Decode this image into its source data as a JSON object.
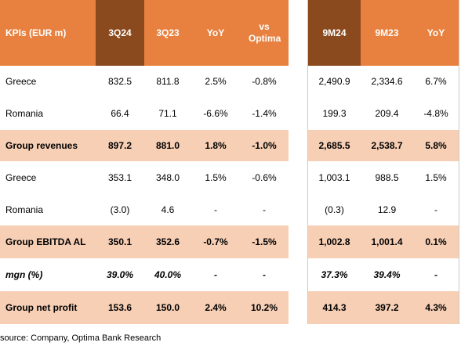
{
  "header": {
    "label": "KPIs (EUR m)",
    "columns": [
      "3Q24",
      "3Q23",
      "YoY",
      "vs Optima",
      "9M24",
      "9M23",
      "YoY"
    ]
  },
  "rows": [
    {
      "label": "Greece",
      "values": [
        "832.5",
        "811.8",
        "2.5%",
        "-0.8%",
        "2,490.9",
        "2,334.6",
        "6.7%"
      ]
    },
    {
      "label": "Romania",
      "values": [
        "66.4",
        "71.1",
        "-6.6%",
        "-1.4%",
        "199.3",
        "209.4",
        "-4.8%"
      ]
    },
    {
      "label": "Group revenues",
      "values": [
        "897.2",
        "881.0",
        "1.8%",
        "-1.0%",
        "2,685.5",
        "2,538.7",
        "5.8%"
      ]
    },
    {
      "label": "Greece",
      "values": [
        "353.1",
        "348.0",
        "1.5%",
        "-0.6%",
        "1,003.1",
        "988.5",
        "1.5%"
      ]
    },
    {
      "label": "Romania",
      "values": [
        "(3.0)",
        "4.6",
        "-",
        "-",
        "(0.3)",
        "12.9",
        "-"
      ]
    },
    {
      "label": "Group EBITDA AL",
      "values": [
        "350.1",
        "352.6",
        "-0.7%",
        "-1.5%",
        "1,002.8",
        "1,001.4",
        "0.1%"
      ]
    },
    {
      "label": "mgn (%)",
      "values": [
        "39.0%",
        "40.0%",
        "-",
        "-",
        "37.3%",
        "39.4%",
        "-"
      ]
    },
    {
      "label": "Group net profit",
      "values": [
        "153.6",
        "150.0",
        "2.4%",
        "10.2%",
        "414.3",
        "397.2",
        "4.3%"
      ]
    }
  ],
  "source": "source: Company, Optima Bank Research",
  "colors": {
    "header_orange": "#e8813f",
    "header_dark": "#8b4a1e",
    "highlight_peach": "#f7cfb5"
  }
}
